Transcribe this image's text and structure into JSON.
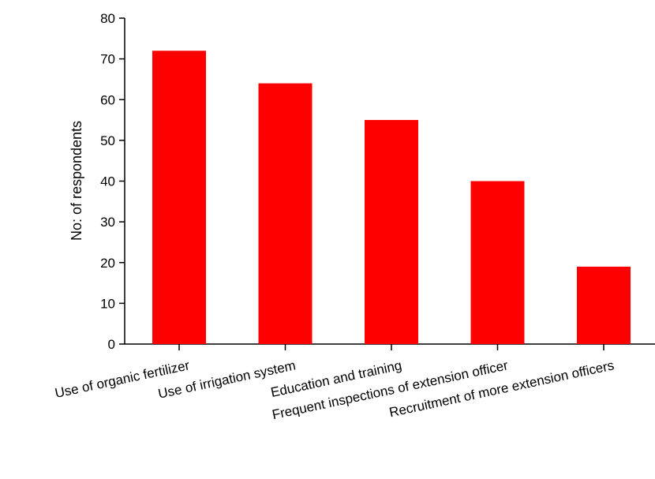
{
  "chart_data": {
    "type": "bar",
    "title": "",
    "xlabel": "",
    "ylabel": "No: of respondents",
    "categories": [
      "Use of organic fertilizer",
      "Use of irrigation system",
      "Education and training",
      "Frequent inspections of extension officer",
      "Recruitment of more extension officers"
    ],
    "values": [
      72,
      64,
      55,
      40,
      19
    ],
    "ylim": [
      0,
      80
    ],
    "yticks": [
      0,
      10,
      20,
      30,
      40,
      50,
      60,
      70,
      80
    ],
    "grid": false,
    "legend": "none",
    "bar_color": "#ff0000"
  }
}
